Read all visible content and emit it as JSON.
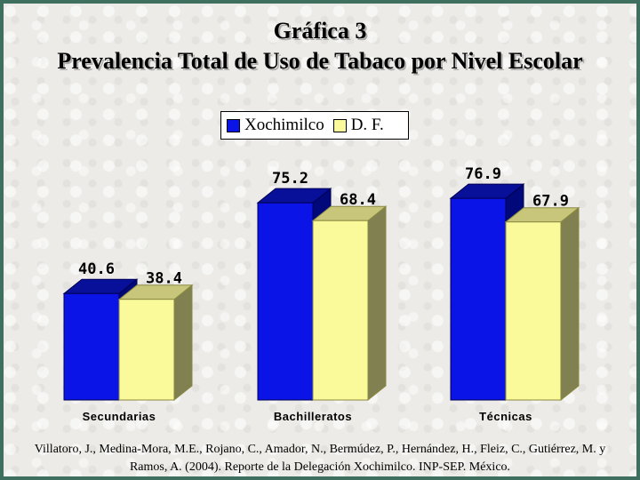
{
  "colors": {
    "series_1": "#0a14e6",
    "series_1_top": "#08109a",
    "series_1_side": "#00087a",
    "series_2": "#fafa9a",
    "series_2_top": "#c8c67a",
    "series_2_side": "#808050"
  },
  "chart_data": {
    "type": "bar",
    "title": "Gráfica 3",
    "subtitle": "Prevalencia Total de Uso de Tabaco por Nivel Escolar",
    "categories": [
      "Secundarias",
      "Bachilleratos",
      "Técnicas"
    ],
    "series": [
      {
        "name": "Xochimilco",
        "values": [
          40.6,
          75.2,
          76.9
        ]
      },
      {
        "name": "D. F.",
        "values": [
          38.4,
          68.4,
          67.9
        ]
      }
    ],
    "value_labels": [
      [
        "40.6",
        "75.2",
        "76.9"
      ],
      [
        "38.4",
        "68.4",
        "67.9"
      ]
    ],
    "xlabel": "",
    "ylabel": "",
    "ylim": [
      0,
      100
    ],
    "grid": false,
    "legend_position": "top-center",
    "style": "3d-clustered"
  },
  "source": "Villatoro, J., Medina-Mora, M.E., Rojano, C., Amador, N., Bermúdez, P., Hernández, H., Fleiz, C., Gutiérrez, M. y Ramos, A. (2004). Reporte de la Delegación Xochimilco. INP-SEP. México."
}
